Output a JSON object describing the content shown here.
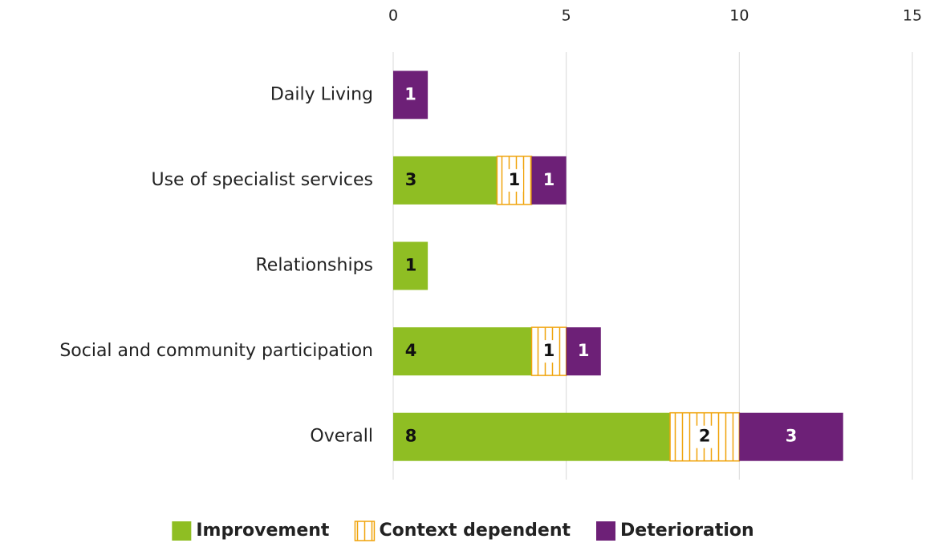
{
  "chart_data": {
    "type": "bar",
    "orientation": "horizontal",
    "stacked": true,
    "categories": [
      "Daily Living",
      "Use of specialist services",
      "Relationships",
      "Social and community participation",
      "Overall"
    ],
    "series": [
      {
        "name": "Improvement",
        "color": "#8fbe23",
        "label_color": "#111111",
        "values": [
          null,
          3,
          1,
          4,
          8
        ]
      },
      {
        "name": "Context dependent",
        "color": "#f0a30a",
        "pattern": "vertical-hatch",
        "label_color": "#111111",
        "values": [
          null,
          1,
          null,
          1,
          2
        ]
      },
      {
        "name": "Deterioration",
        "color": "#6d2077",
        "label_color": "#ffffff",
        "values": [
          1,
          1,
          null,
          1,
          3
        ]
      }
    ],
    "xlim": [
      0,
      15
    ],
    "xticks": [
      0,
      5,
      10,
      15
    ],
    "grid": true,
    "legend": "bottom"
  }
}
